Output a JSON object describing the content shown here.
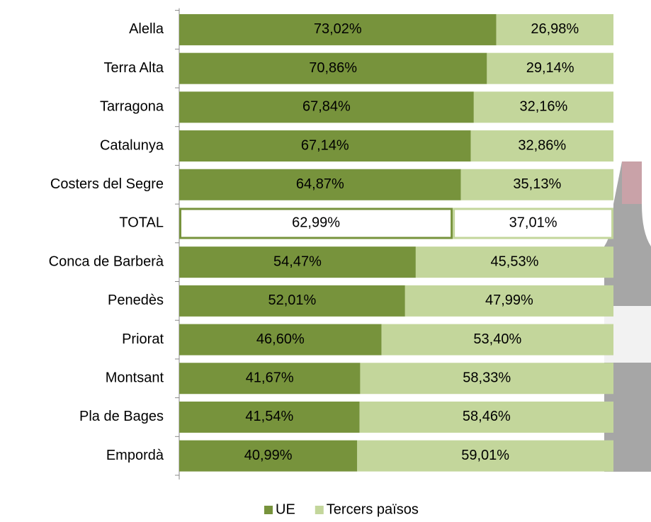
{
  "chart_data": {
    "type": "stacked-bar-horizontal",
    "categories": [
      "Alella",
      "Terra Alta",
      "Tarragona",
      "Catalunya",
      "Costers del Segre",
      "TOTAL",
      "Conca de Barberà",
      "Penedès",
      "Priorat",
      "Montsant",
      "Pla de Bages",
      "Empordà"
    ],
    "series": [
      {
        "name": "UE",
        "color": "#77933c",
        "values": [
          73.02,
          70.86,
          67.84,
          67.14,
          64.87,
          62.99,
          54.47,
          52.01,
          46.6,
          41.67,
          41.54,
          40.99
        ],
        "value_labels": [
          "73,02%",
          "70,86%",
          "67,84%",
          "67,14%",
          "64,87%",
          "62,99%",
          "54,47%",
          "52,01%",
          "46,60%",
          "41,67%",
          "41,54%",
          "40,99%"
        ]
      },
      {
        "name": "Tercers països",
        "color": "#c3d69b",
        "values": [
          26.98,
          29.14,
          32.16,
          32.86,
          35.13,
          37.01,
          45.53,
          47.99,
          53.4,
          58.33,
          58.46,
          59.01
        ],
        "value_labels": [
          "26,98%",
          "29,14%",
          "32,16%",
          "32,86%",
          "35,13%",
          "37,01%",
          "45,53%",
          "47,99%",
          "53,40%",
          "58,33%",
          "58,46%",
          "59,01%"
        ]
      }
    ],
    "xlim": [
      0,
      100
    ],
    "highlight_index": 5,
    "legend": "bottom"
  }
}
